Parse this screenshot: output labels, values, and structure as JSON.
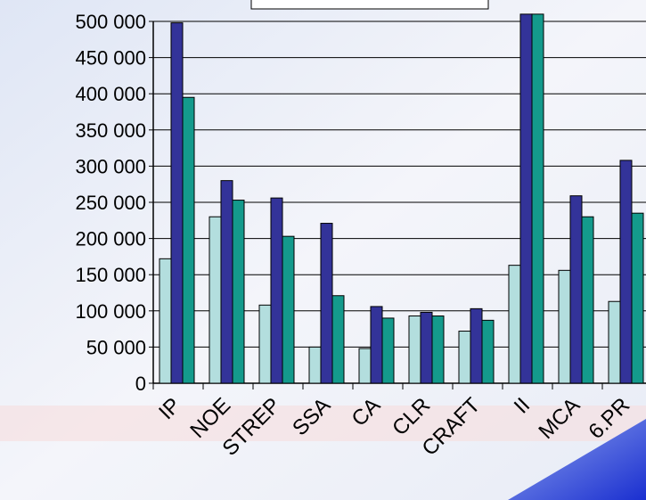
{
  "chart_data": {
    "type": "bar",
    "categories": [
      "IP",
      "NOE",
      "STREP",
      "SSA",
      "CA",
      "CLR",
      "CRAFT",
      "II",
      "MCA",
      "6.PR"
    ],
    "series": [
      {
        "color": "#b3dede",
        "values": [
          172000,
          230000,
          108000,
          50000,
          48000,
          93000,
          72000,
          163000,
          156000,
          113000
        ]
      },
      {
        "color": "#333399",
        "values": [
          498000,
          280000,
          256000,
          221000,
          106000,
          98000,
          103000,
          510000,
          259000,
          308000
        ]
      },
      {
        "color": "#149a8c",
        "values": [
          395000,
          253000,
          203000,
          121000,
          90000,
          93000,
          87000,
          510000,
          230000,
          235000
        ]
      }
    ],
    "ylim": [
      0,
      500000
    ],
    "yticks": [
      {
        "value": 0,
        "label": "0"
      },
      {
        "value": 50000,
        "label": "50 000"
      },
      {
        "value": 100000,
        "label": "100 000"
      },
      {
        "value": 150000,
        "label": "150 000"
      },
      {
        "value": 200000,
        "label": "200 000"
      },
      {
        "value": 250000,
        "label": "250 000"
      },
      {
        "value": 300000,
        "label": "300 000"
      },
      {
        "value": 350000,
        "label": "350 000"
      },
      {
        "value": 400000,
        "label": "400 000"
      },
      {
        "value": 450000,
        "label": "450 000"
      },
      {
        "value": 500000,
        "label": "500 000"
      }
    ],
    "grid": true
  }
}
